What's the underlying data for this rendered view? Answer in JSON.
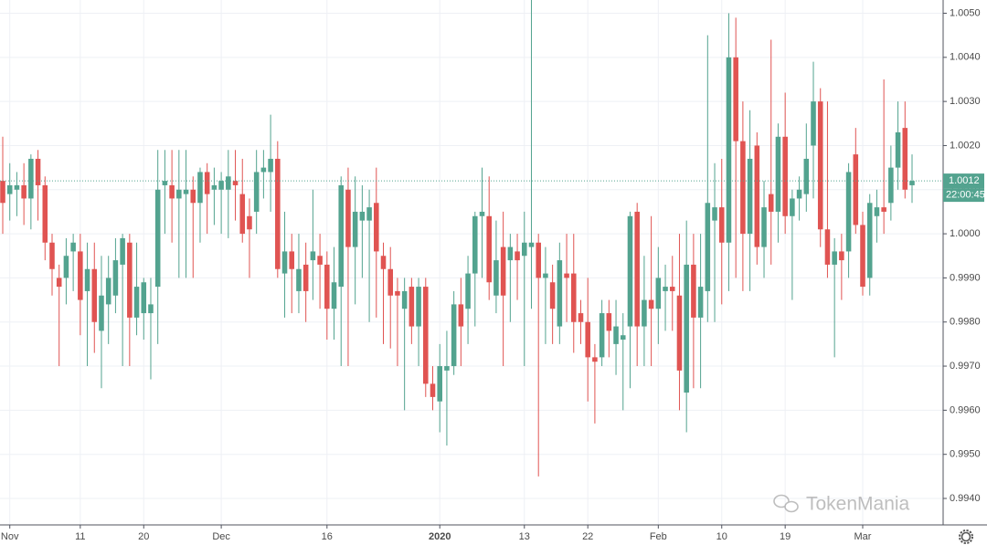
{
  "chart_data": {
    "type": "candlestick",
    "categories": [
      null,
      "Nov",
      null,
      null,
      null,
      null,
      null,
      null,
      null,
      null,
      null,
      "11",
      null,
      null,
      null,
      null,
      null,
      null,
      null,
      null,
      "20",
      null,
      null,
      null,
      null,
      null,
      null,
      null,
      null,
      null,
      null,
      "Dec",
      null,
      null,
      null,
      null,
      null,
      null,
      null,
      null,
      null,
      null,
      null,
      null,
      null,
      null,
      "16",
      null,
      null,
      null,
      null,
      null,
      null,
      null,
      null,
      null,
      null,
      null,
      null,
      null,
      null,
      null,
      "2020",
      null,
      null,
      null,
      null,
      null,
      null,
      null,
      null,
      null,
      null,
      null,
      "13",
      null,
      null,
      null,
      null,
      null,
      null,
      null,
      null,
      "22",
      null,
      null,
      null,
      null,
      null,
      null,
      null,
      null,
      null,
      "Feb",
      null,
      null,
      null,
      null,
      null,
      null,
      null,
      null,
      "10",
      null,
      null,
      null,
      null,
      null,
      null,
      null,
      null,
      "19",
      null,
      null,
      null,
      null,
      null,
      null,
      null,
      null,
      null,
      null,
      "Mar",
      null,
      null,
      null,
      null,
      null,
      null,
      null
    ],
    "open": [
      1.0012,
      1.0009,
      1.001,
      1.0011,
      1.0008,
      1.0017,
      1.0011,
      0.9998,
      0.999,
      0.999,
      0.9996,
      0.9996,
      0.9987,
      0.9992,
      0.9978,
      0.9984,
      0.9986,
      0.9993,
      0.9998,
      0.9981,
      0.9982,
      0.9982,
      0.9988,
      1.0011,
      1.0011,
      1.0008,
      1.0009,
      1.001,
      1.0007,
      1.0014,
      1.001,
      1.001,
      1.001,
      1.0012,
      1.0009,
      1.0004,
      1.0005,
      1.0014,
      1.0014,
      1.0017,
      0.9991,
      0.9996,
      0.9987,
      0.9993,
      0.9994,
      0.9995,
      0.9993,
      0.9983,
      0.9988,
      1.001,
      0.9997,
      1.0003,
      1.0003,
      1.0007,
      0.9995,
      0.9992,
      0.9987,
      0.9983,
      0.9988,
      0.9979,
      0.9988,
      0.9966,
      0.9962,
      0.9969,
      0.997,
      0.9984,
      0.9983,
      0.9991,
      1.0004,
      1.0004,
      0.9986,
      0.9997,
      0.9994,
      0.9996,
      0.9995,
      0.9997,
      0.9998,
      0.999,
      0.9989,
      0.9979,
      0.9991,
      0.9991,
      0.9982,
      0.998,
      0.9972,
      0.9972,
      0.9982,
      0.9975,
      0.9976,
      0.9979,
      1.0005,
      0.9979,
      0.9985,
      0.9983,
      0.9987,
      0.9988,
      0.9986,
      0.9964,
      0.9993,
      0.9981,
      0.9987,
      1.0003,
      1.0006,
      0.9998,
      1.004,
      1.0021,
      1.0,
      1.002,
      0.9997,
      1.0009,
      1.0005,
      1.0022,
      1.0004,
      1.0008,
      1.0009,
      1.002,
      1.003,
      1.0001,
      0.9993,
      0.9996,
      0.9996,
      1.0018,
      1.0002,
      0.999,
      1.0004,
      1.0006,
      1.0007,
      1.0015,
      1.0024,
      1.0011
    ],
    "high": [
      1.0022,
      1.0016,
      1.0014,
      1.0016,
      1.0018,
      1.0019,
      1.0013,
      1.0,
      0.9993,
      0.9999,
      1.0,
      1.0,
      0.9998,
      0.9998,
      0.9995,
      0.9995,
      0.9999,
      1.0,
      1.0,
      0.9998,
      0.999,
      0.999,
      1.0019,
      1.0019,
      1.0019,
      1.0019,
      1.0019,
      1.0013,
      1.0015,
      1.0016,
      1.0015,
      1.0014,
      1.0019,
      1.0019,
      1.0017,
      1.0008,
      1.0019,
      1.0019,
      1.0027,
      1.0021,
      1.0005,
      1.0,
      1.0,
      0.9998,
      1.001,
      1.0,
      0.9996,
      0.9997,
      1.0013,
      1.0015,
      1.0013,
      1.0011,
      1.001,
      1.0015,
      0.9998,
      0.9997,
      0.999,
      0.999,
      0.999,
      0.999,
      0.999,
      0.997,
      0.9975,
      0.9978,
      0.9987,
      0.999,
      0.9995,
      1.0005,
      1.0015,
      1.0013,
      1.0003,
      1.0005,
      1.0,
      1.0,
      1.0005,
      1.0053,
      1.0,
      0.9997,
      0.9993,
      0.9998,
      1.0,
      1.0,
      0.9985,
      0.999,
      0.9975,
      0.9985,
      0.9985,
      0.9985,
      0.9982,
      1.0005,
      1.0007,
      0.9995,
      1.0004,
      0.9997,
      0.9993,
      0.9995,
      1.0,
      1.0003,
      1.0,
      1.0,
      1.0045,
      1.0016,
      1.0017,
      1.005,
      1.0049,
      1.003,
      1.0028,
      1.0023,
      1.0012,
      1.0044,
      1.0025,
      1.0032,
      1.001,
      1.0013,
      1.0025,
      1.0039,
      1.0033,
      1.003,
      0.9999,
      1.0,
      1.0016,
      1.0024,
      1.0005,
      1.0009,
      1.001,
      1.0035,
      1.002,
      1.003,
      1.003,
      1.0018
    ],
    "low": [
      1.0,
      1.0003,
      1.0004,
      1.0002,
      1.0001,
      1.0003,
      0.9994,
      0.9986,
      0.997,
      0.9984,
      0.9987,
      0.9977,
      0.997,
      0.9973,
      0.9965,
      0.9975,
      0.9982,
      0.997,
      0.997,
      0.9977,
      0.9976,
      0.9967,
      0.9975,
      1.0,
      0.9998,
      0.999,
      0.999,
      0.999,
      0.9998,
      1.0,
      1.0002,
      1.0,
      0.9999,
      1.0003,
      0.9998,
      0.999,
      1.0,
      1.0008,
      1.0005,
      0.999,
      0.9981,
      0.9982,
      0.9982,
      0.998,
      0.9985,
      0.9983,
      0.9976,
      0.9976,
      0.997,
      0.997,
      0.9984,
      0.999,
      0.998,
      0.9981,
      0.9975,
      0.9974,
      0.997,
      0.996,
      0.9975,
      0.997,
      0.9963,
      0.996,
      0.9955,
      0.9952,
      0.9968,
      0.997,
      0.9975,
      0.9979,
      0.999,
      0.9985,
      0.9982,
      0.997,
      0.998,
      0.9985,
      0.997,
      0.9983,
      0.9945,
      0.9975,
      0.9975,
      0.9975,
      0.998,
      0.9973,
      0.9975,
      0.9962,
      0.9957,
      0.997,
      0.9972,
      0.9968,
      0.996,
      0.9965,
      0.997,
      0.997,
      0.997,
      0.9975,
      0.9978,
      0.9978,
      0.996,
      0.9955,
      0.9965,
      0.9965,
      0.998,
      0.998,
      0.9984,
      0.9987,
      0.999,
      0.9987,
      0.9987,
      0.9993,
      0.999,
      0.9993,
      0.9998,
      1.0,
      0.9985,
      1.0003,
      1.0005,
      1.0008,
      0.9997,
      0.999,
      0.9972,
      0.9985,
      0.999,
      1.0,
      0.9986,
      0.9986,
      0.9998,
      1.0,
      1.0003,
      1.001,
      1.0008,
      1.0007
    ],
    "close": [
      1.0007,
      1.0011,
      1.0011,
      1.0008,
      1.0017,
      1.0011,
      0.9998,
      0.9992,
      0.9988,
      0.9995,
      0.9998,
      0.9985,
      0.9992,
      0.998,
      0.9986,
      0.999,
      0.9994,
      0.9999,
      0.9981,
      0.9988,
      0.9989,
      0.9984,
      1.001,
      1.0012,
      1.0008,
      1.001,
      1.001,
      1.0007,
      1.0014,
      1.0009,
      1.0011,
      1.0012,
      1.0013,
      1.0011,
      1.0,
      1.0001,
      1.0014,
      1.0015,
      1.0017,
      0.9992,
      0.9996,
      0.9992,
      0.9992,
      0.9987,
      0.9996,
      0.9993,
      0.9983,
      0.9989,
      1.0011,
      0.9997,
      1.0005,
      1.0005,
      1.0006,
      0.9996,
      0.9992,
      0.9986,
      0.9986,
      0.9987,
      0.9979,
      0.9988,
      0.9966,
      0.9963,
      0.997,
      0.997,
      0.9984,
      0.9979,
      0.9991,
      1.0004,
      1.0005,
      0.9989,
      0.9994,
      0.9986,
      0.9997,
      0.9994,
      0.9998,
      0.9998,
      0.999,
      0.9991,
      0.9983,
      0.9994,
      0.999,
      0.998,
      0.998,
      0.9972,
      0.9971,
      0.9982,
      0.9978,
      0.9979,
      0.9977,
      1.0004,
      0.9979,
      0.9985,
      0.9983,
      0.999,
      0.9988,
      0.9987,
      0.9969,
      0.9993,
      0.9981,
      0.9988,
      1.0007,
      1.0006,
      0.9998,
      1.004,
      1.0021,
      1.0,
      1.0017,
      0.9997,
      1.0006,
      1.0005,
      1.0022,
      1.0004,
      1.0008,
      1.001,
      1.0017,
      1.003,
      1.0001,
      0.9993,
      0.9996,
      0.9994,
      1.0014,
      1.0002,
      0.9988,
      1.0007,
      1.0006,
      1.0005,
      1.0015,
      1.0023,
      1.001,
      1.0012
    ],
    "up_color": "#53a38f",
    "down_color": "#e05452",
    "ylim": [
      0.9934,
      1.0053
    ],
    "yticks": [
      {
        "value": 1.005,
        "label": "1.0050"
      },
      {
        "value": 1.004,
        "label": "1.0040"
      },
      {
        "value": 1.003,
        "label": "1.0030"
      },
      {
        "value": 1.002,
        "label": "1.0020"
      },
      {
        "value": 1.001,
        "label": "1.0010"
      },
      {
        "value": 1.0,
        "label": "1.0000"
      },
      {
        "value": 0.999,
        "label": "0.9990"
      },
      {
        "value": 0.998,
        "label": "0.9980"
      },
      {
        "value": 0.997,
        "label": "0.9970"
      },
      {
        "value": 0.996,
        "label": "0.9960"
      },
      {
        "value": 0.995,
        "label": "0.9950"
      },
      {
        "value": 0.994,
        "label": "0.9940"
      }
    ],
    "grid": true,
    "last_price": 1.0012,
    "countdown": "22:00:45",
    "watermark": "TokenMania"
  }
}
